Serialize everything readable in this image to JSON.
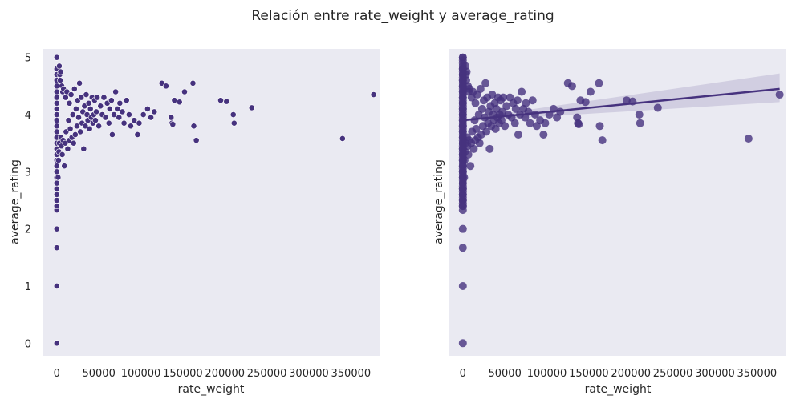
{
  "suptitle": "Relación entre rate_weight y average_rating",
  "colors": {
    "background": "#eaeaf2",
    "marker": "#46327e",
    "marker_edge_left": "#ffffff",
    "regression_line": "#46327e",
    "confidence_band": "#46327e"
  },
  "chart_data": [
    {
      "type": "scatter",
      "title": "",
      "xlabel": "rate_weight",
      "ylabel": "average_rating",
      "xlim": [
        -17000,
        385000
      ],
      "ylim": [
        -0.22,
        5.15
      ],
      "xticks": [
        0,
        50000,
        100000,
        150000,
        200000,
        250000,
        300000,
        350000
      ],
      "xtick_labels": [
        "0",
        "50000",
        "100000",
        "150000",
        "200000",
        "250000",
        "300000",
        "350000"
      ],
      "yticks": [
        0,
        1,
        2,
        3,
        4,
        5
      ],
      "ytick_labels": [
        "0",
        "1",
        "2",
        "3",
        "4",
        "5"
      ],
      "grid": false,
      "points": [
        [
          0,
          0
        ],
        [
          0,
          1
        ],
        [
          0,
          1.67
        ],
        [
          0,
          2
        ],
        [
          0,
          2.33
        ],
        [
          0,
          2.4
        ],
        [
          0,
          2.5
        ],
        [
          0,
          2.6
        ],
        [
          0,
          2.7
        ],
        [
          0,
          2.8
        ],
        [
          0,
          2.9
        ],
        [
          0,
          3.0
        ],
        [
          0,
          3.1
        ],
        [
          0,
          3.2
        ],
        [
          0,
          3.3
        ],
        [
          0,
          3.4
        ],
        [
          0,
          3.5
        ],
        [
          0,
          3.6
        ],
        [
          0,
          3.7
        ],
        [
          0,
          3.8
        ],
        [
          0,
          3.9
        ],
        [
          0,
          4.0
        ],
        [
          0,
          4.1
        ],
        [
          0,
          4.2
        ],
        [
          0,
          4.3
        ],
        [
          0,
          4.4
        ],
        [
          0,
          4.5
        ],
        [
          0,
          4.6
        ],
        [
          0,
          4.7
        ],
        [
          0,
          4.8
        ],
        [
          0,
          5.0
        ],
        [
          1500,
          2.9
        ],
        [
          2000,
          3.2
        ],
        [
          2500,
          3.35
        ],
        [
          3000,
          3.5
        ],
        [
          3500,
          4.7
        ],
        [
          4000,
          4.6
        ],
        [
          4500,
          4.75
        ],
        [
          3000,
          4.85
        ],
        [
          5000,
          3.6
        ],
        [
          5500,
          3.45
        ],
        [
          6000,
          4.5
        ],
        [
          6500,
          3.3
        ],
        [
          7000,
          4.4
        ],
        [
          7500,
          3.55
        ],
        [
          8000,
          4.45
        ],
        [
          9000,
          3.1
        ],
        [
          10000,
          3.5
        ],
        [
          10500,
          4.3
        ],
        [
          11000,
          3.7
        ],
        [
          12000,
          4.4
        ],
        [
          13000,
          3.4
        ],
        [
          14000,
          3.9
        ],
        [
          15000,
          3.55
        ],
        [
          15000,
          4.2
        ],
        [
          16000,
          3.75
        ],
        [
          17000,
          4.35
        ],
        [
          18000,
          3.6
        ],
        [
          19000,
          4.0
        ],
        [
          20000,
          3.5
        ],
        [
          21000,
          4.45
        ],
        [
          22000,
          3.65
        ],
        [
          23000,
          4.1
        ],
        [
          24000,
          3.8
        ],
        [
          25000,
          4.25
        ],
        [
          26000,
          3.95
        ],
        [
          27000,
          4.55
        ],
        [
          28000,
          3.7
        ],
        [
          29000,
          4.3
        ],
        [
          30000,
          3.85
        ],
        [
          31000,
          4.05
        ],
        [
          32000,
          3.4
        ],
        [
          33000,
          4.15
        ],
        [
          34000,
          3.8
        ],
        [
          35000,
          4.35
        ],
        [
          36000,
          4.0
        ],
        [
          37000,
          3.9
        ],
        [
          38000,
          4.2
        ],
        [
          39000,
          3.75
        ],
        [
          40000,
          4.1
        ],
        [
          41000,
          3.95
        ],
        [
          42000,
          4.3
        ],
        [
          43000,
          3.85
        ],
        [
          44000,
          4.0
        ],
        [
          45000,
          4.25
        ],
        [
          46000,
          3.9
        ],
        [
          47000,
          4.05
        ],
        [
          48000,
          4.3
        ],
        [
          50000,
          3.8
        ],
        [
          52000,
          4.15
        ],
        [
          54000,
          4.0
        ],
        [
          56000,
          4.3
        ],
        [
          58000,
          3.95
        ],
        [
          60000,
          4.2
        ],
        [
          62000,
          3.85
        ],
        [
          63000,
          4.1
        ],
        [
          65000,
          4.25
        ],
        [
          66000,
          3.65
        ],
        [
          68000,
          4.0
        ],
        [
          70000,
          4.4
        ],
        [
          72000,
          4.1
        ],
        [
          74000,
          3.95
        ],
        [
          75000,
          4.2
        ],
        [
          78000,
          4.05
        ],
        [
          80000,
          3.85
        ],
        [
          83000,
          4.25
        ],
        [
          86000,
          4.0
        ],
        [
          88000,
          3.8
        ],
        [
          92000,
          3.9
        ],
        [
          96000,
          3.65
        ],
        [
          98000,
          3.85
        ],
        [
          103000,
          4.0
        ],
        [
          108000,
          4.1
        ],
        [
          112000,
          3.95
        ],
        [
          116000,
          4.05
        ],
        [
          125000,
          4.55
        ],
        [
          130000,
          4.5
        ],
        [
          136000,
          3.95
        ],
        [
          137000,
          3.85
        ],
        [
          138000,
          3.83
        ],
        [
          140000,
          4.25
        ],
        [
          146000,
          4.22
        ],
        [
          152000,
          4.4
        ],
        [
          162000,
          4.55
        ],
        [
          163000,
          3.8
        ],
        [
          166000,
          3.55
        ],
        [
          195000,
          4.25
        ],
        [
          202000,
          4.23
        ],
        [
          210000,
          4.0
        ],
        [
          211000,
          3.85
        ],
        [
          232000,
          4.12
        ],
        [
          340000,
          3.58
        ],
        [
          377000,
          4.35
        ]
      ],
      "regression": {
        "x": [
          0,
          377000
        ],
        "y": [
          3.9,
          4.45
        ],
        "ci_lower_end": 4.22,
        "ci_upper_end": 4.72
      }
    }
  ]
}
